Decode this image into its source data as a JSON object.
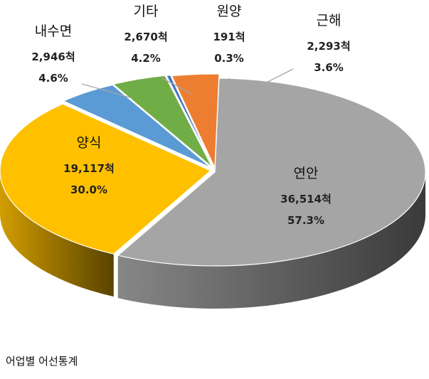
{
  "chart_data": {
    "type": "pie",
    "style": "3d-exploded",
    "unit": "척",
    "slices": [
      {
        "name": "연안",
        "value": 36514,
        "value_label": "36,514척",
        "percent_label": "57.3%",
        "percent": 57.3,
        "color": "#a5a5a5"
      },
      {
        "name": "양식",
        "value": 19117,
        "value_label": "19,117척",
        "percent_label": "30.0%",
        "percent": 30.0,
        "color": "#ffc000"
      },
      {
        "name": "내수면",
        "value": 2946,
        "value_label": "2,946척",
        "percent_label": "4.6%",
        "percent": 4.6,
        "color": "#5b9bd5"
      },
      {
        "name": "기타",
        "value": 2670,
        "value_label": "2,670척",
        "percent_label": "4.2%",
        "percent": 4.2,
        "color": "#70ad47"
      },
      {
        "name": "원양",
        "value": 191,
        "value_label": "191척",
        "percent_label": "0.3%",
        "percent": 0.3,
        "color": "#4472c4"
      },
      {
        "name": "근해",
        "value": 2293,
        "value_label": "2,293척",
        "percent_label": "3.6%",
        "percent": 3.6,
        "color": "#ed7d31"
      }
    ]
  },
  "caption": "어업별 어선통계"
}
